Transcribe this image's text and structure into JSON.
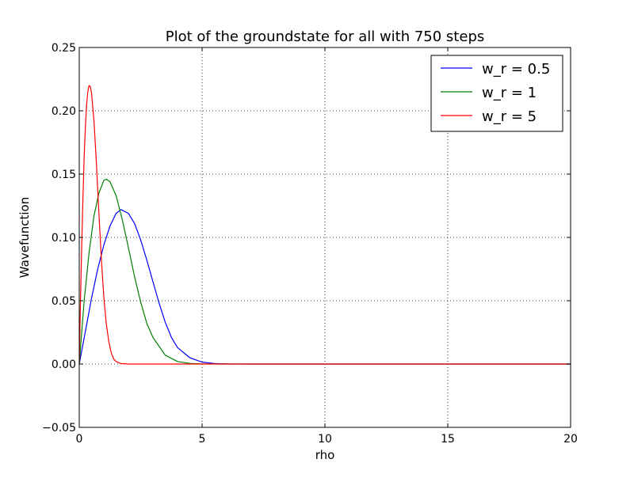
{
  "chart_data": {
    "type": "line",
    "title": "Plot of the groundstate for all with 750 steps",
    "xlabel": "rho",
    "ylabel": "Wavefunction",
    "xlim": [
      0,
      20
    ],
    "ylim": [
      -0.05,
      0.25
    ],
    "xticks": [
      0,
      5,
      10,
      15,
      20
    ],
    "xtick_labels": [
      "0",
      "5",
      "10",
      "15",
      "20"
    ],
    "yticks": [
      -0.05,
      0.0,
      0.05,
      0.1,
      0.15,
      0.2,
      0.25
    ],
    "ytick_labels": [
      "−0.05",
      "0.00",
      "0.05",
      "0.10",
      "0.15",
      "0.20",
      "0.25"
    ],
    "grid": true,
    "legend_position": "top-right",
    "series": [
      {
        "name": "w_r = 0.5",
        "color": "#0000ff",
        "x": [
          0,
          0.25,
          0.5,
          0.75,
          1.0,
          1.25,
          1.5,
          1.7,
          2.0,
          2.25,
          2.5,
          2.75,
          3.0,
          3.25,
          3.5,
          3.75,
          4.0,
          4.5,
          5.0,
          5.5,
          6.0,
          7.0,
          8.0,
          10.0,
          15.0,
          20.0
        ],
        "y": [
          0.0,
          0.026,
          0.052,
          0.075,
          0.094,
          0.109,
          0.119,
          0.122,
          0.119,
          0.111,
          0.098,
          0.082,
          0.065,
          0.048,
          0.033,
          0.021,
          0.013,
          0.005,
          0.0015,
          0.0004,
          0.0001,
          0.0,
          0.0,
          0.0,
          0.0,
          0.0
        ]
      },
      {
        "name": "w_r = 1",
        "color": "#008000",
        "x": [
          0,
          0.2,
          0.4,
          0.6,
          0.8,
          1.0,
          1.1,
          1.25,
          1.5,
          1.75,
          2.0,
          2.25,
          2.5,
          2.75,
          3.0,
          3.5,
          4.0,
          4.5,
          5.0,
          6.0,
          8.0,
          10.0,
          15.0,
          20.0
        ],
        "y": [
          0.0,
          0.05,
          0.088,
          0.117,
          0.135,
          0.145,
          0.146,
          0.144,
          0.133,
          0.114,
          0.092,
          0.069,
          0.049,
          0.032,
          0.021,
          0.007,
          0.002,
          0.0005,
          0.0001,
          0.0,
          0.0,
          0.0,
          0.0,
          0.0
        ]
      },
      {
        "name": "w_r = 5",
        "color": "#ff0000",
        "x": [
          0,
          0.05,
          0.1,
          0.15,
          0.2,
          0.25,
          0.3,
          0.35,
          0.4,
          0.45,
          0.5,
          0.6,
          0.7,
          0.8,
          0.9,
          1.0,
          1.1,
          1.2,
          1.3,
          1.4,
          1.5,
          1.7,
          2.0,
          2.5,
          3.0,
          5.0,
          10.0,
          20.0
        ],
        "y": [
          0.0,
          0.048,
          0.093,
          0.132,
          0.164,
          0.188,
          0.205,
          0.215,
          0.22,
          0.219,
          0.214,
          0.192,
          0.158,
          0.119,
          0.083,
          0.053,
          0.032,
          0.018,
          0.009,
          0.004,
          0.002,
          0.0004,
          0.0,
          0.0,
          0.0,
          0.0,
          0.0,
          0.0
        ]
      }
    ]
  }
}
